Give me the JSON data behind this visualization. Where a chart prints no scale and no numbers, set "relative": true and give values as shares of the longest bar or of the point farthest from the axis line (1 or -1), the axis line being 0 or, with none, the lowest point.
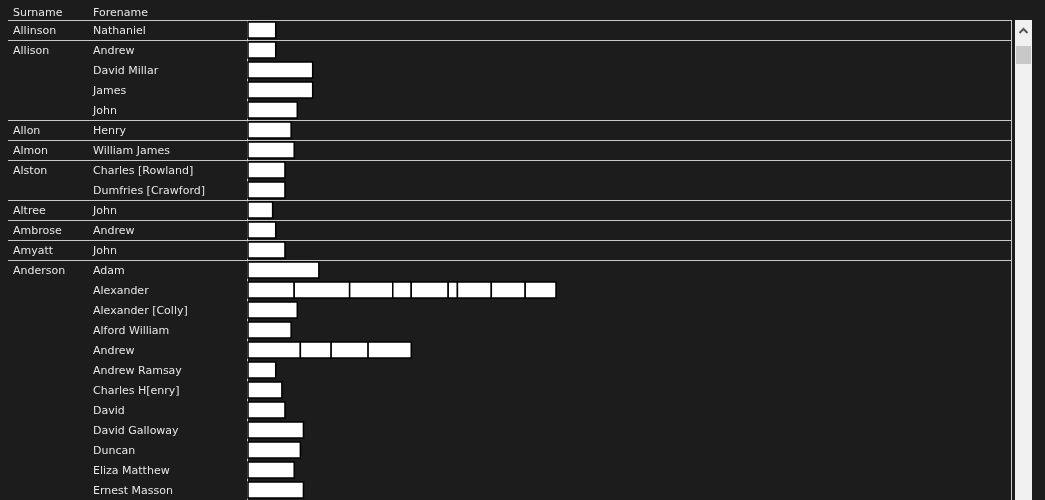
{
  "chart_data": {
    "type": "bar",
    "orientation": "horizontal",
    "stacked": true,
    "relative": true,
    "legend": false,
    "ylabel": "Forename",
    "categories": [
      "Nathaniel",
      "Andrew",
      "David Millar",
      "James",
      "John",
      "Henry",
      "William James",
      "Charles [Rowland]",
      "Dumfries [Crawford]",
      "John",
      "Andrew",
      "John",
      "Adam",
      "Alexander",
      "Alexander [Colly]",
      "Alford William",
      "Andrew",
      "Andrew Ramsay",
      "Charles H[enry]",
      "David",
      "David Galloway",
      "Duncan",
      "Eliza Matthew",
      "Ernest Masson"
    ],
    "series": [
      {
        "color": "#ffffff",
        "values": [
          0.09,
          0.09,
          0.21,
          0.21,
          0.16,
          0.14,
          0.15,
          0.12,
          0.12,
          0.08,
          0.09,
          0.12,
          0.23,
          0.15,
          0.16,
          0.14,
          0.17,
          0.09,
          0.11,
          0.12,
          0.18,
          0.17,
          0.15,
          0.18
        ]
      },
      {
        "color": "#ffffff",
        "values": [
          null,
          null,
          null,
          null,
          null,
          null,
          null,
          null,
          null,
          null,
          null,
          null,
          null,
          0.18,
          null,
          null,
          0.1,
          null,
          null,
          null,
          null,
          null,
          null,
          null
        ]
      },
      {
        "color": "#ffffff",
        "values": [
          null,
          null,
          null,
          null,
          null,
          null,
          null,
          null,
          null,
          null,
          null,
          null,
          null,
          0.14,
          null,
          null,
          0.12,
          null,
          null,
          null,
          null,
          null,
          null,
          null
        ]
      },
      {
        "color": "#ffffff",
        "values": [
          null,
          null,
          null,
          null,
          null,
          null,
          null,
          null,
          null,
          null,
          null,
          null,
          null,
          0.06,
          null,
          null,
          0.14,
          null,
          null,
          null,
          null,
          null,
          null,
          null
        ]
      },
      {
        "color": "#ffffff",
        "values": [
          null,
          null,
          null,
          null,
          null,
          null,
          null,
          null,
          null,
          null,
          null,
          null,
          null,
          0.12,
          null,
          null,
          null,
          null,
          null,
          null,
          null,
          null,
          null,
          null
        ]
      },
      {
        "color": "#ffffff",
        "values": [
          null,
          null,
          null,
          null,
          null,
          null,
          null,
          null,
          null,
          null,
          null,
          null,
          null,
          0.03,
          null,
          null,
          null,
          null,
          null,
          null,
          null,
          null,
          null,
          null
        ]
      },
      {
        "color": "#ffffff",
        "values": [
          null,
          null,
          null,
          null,
          null,
          null,
          null,
          null,
          null,
          null,
          null,
          null,
          null,
          0.11,
          null,
          null,
          null,
          null,
          null,
          null,
          null,
          null,
          null,
          null
        ]
      },
      {
        "color": "#ffffff",
        "values": [
          null,
          null,
          null,
          null,
          null,
          null,
          null,
          null,
          null,
          null,
          null,
          null,
          null,
          0.11,
          null,
          null,
          null,
          null,
          null,
          null,
          null,
          null,
          null,
          null
        ]
      },
      {
        "color": "#ffffff",
        "values": [
          null,
          null,
          null,
          null,
          null,
          null,
          null,
          null,
          null,
          null,
          null,
          null,
          null,
          0.1,
          null,
          null,
          null,
          null,
          null,
          null,
          null,
          null,
          null,
          null
        ]
      }
    ],
    "annotations": [
      "Surname",
      "Allinson",
      "Allison",
      "Allon",
      "Almon",
      "Alston",
      "Altree",
      "Ambrose",
      "Amyatt",
      "Anderson"
    ]
  }
}
